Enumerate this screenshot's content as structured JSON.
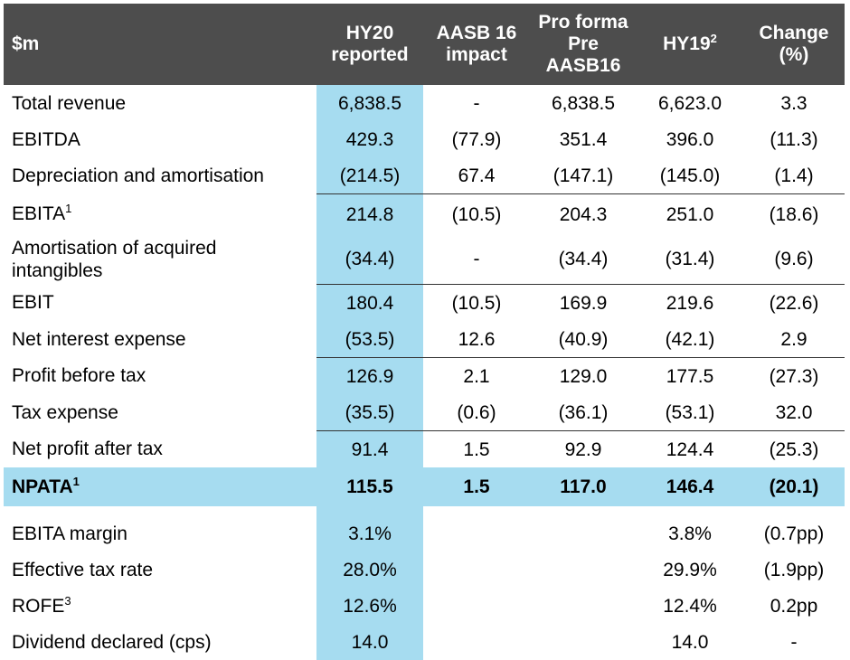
{
  "header": {
    "label": "$m",
    "columns": [
      {
        "lines": [
          "HY20",
          "reported"
        ]
      },
      {
        "lines": [
          "AASB 16",
          "impact"
        ]
      },
      {
        "lines": [
          "Pro forma",
          "Pre",
          "AASB16"
        ]
      },
      {
        "lines": [
          "HY19"
        ],
        "sup": "2"
      },
      {
        "lines": [
          "Change",
          "(%)"
        ]
      }
    ]
  },
  "rows": [
    {
      "label": "Total revenue",
      "values": [
        "6,838.5",
        "-",
        "6,838.5",
        "6,623.0",
        "3.3"
      ]
    },
    {
      "label": "EBITDA",
      "values": [
        "429.3",
        "(77.9)",
        "351.4",
        "396.0",
        "(11.3)"
      ]
    },
    {
      "label": "Depreciation and amortisation",
      "values": [
        "(214.5)",
        "67.4",
        "(147.1)",
        "(145.0)",
        "(1.4)"
      ]
    },
    {
      "label": "EBITA",
      "sup": "1",
      "values": [
        "214.8",
        "(10.5)",
        "204.3",
        "251.0",
        "(18.6)"
      ]
    },
    {
      "label_lines": [
        "Amortisation of acquired",
        "intangibles"
      ],
      "values": [
        "(34.4)",
        "-",
        "(34.4)",
        "(31.4)",
        "(9.6)"
      ]
    },
    {
      "label": "EBIT",
      "values": [
        "180.4",
        "(10.5)",
        "169.9",
        "219.6",
        "(22.6)"
      ]
    },
    {
      "label": "Net interest expense",
      "values": [
        "(53.5)",
        "12.6",
        "(40.9)",
        "(42.1)",
        "2.9"
      ]
    },
    {
      "label": "Profit before tax",
      "values": [
        "126.9",
        "2.1",
        "129.0",
        "177.5",
        "(27.3)"
      ]
    },
    {
      "label": "Tax expense",
      "values": [
        "(35.5)",
        "(0.6)",
        "(36.1)",
        "(53.1)",
        "32.0"
      ]
    },
    {
      "label": "Net profit after tax",
      "values": [
        "91.4",
        "1.5",
        "92.9",
        "124.4",
        "(25.3)"
      ]
    },
    {
      "label": "NPATA",
      "sup": "1",
      "values": [
        "115.5",
        "1.5",
        "117.0",
        "146.4",
        "(20.1)"
      ]
    },
    {
      "label": "EBITA margin",
      "values": [
        "3.1%",
        "",
        "",
        "3.8%",
        "(0.7pp)"
      ]
    },
    {
      "label": "Effective tax rate",
      "values": [
        "28.0%",
        "",
        "",
        "29.9%",
        "(1.9pp)"
      ]
    },
    {
      "label": "ROFE",
      "sup": "3",
      "values": [
        "12.6%",
        "",
        "",
        "12.4%",
        "0.2pp"
      ]
    },
    {
      "label": "Dividend declared (cps)",
      "values": [
        "14.0",
        "",
        "",
        "14.0",
        "-"
      ]
    }
  ],
  "colors": {
    "header_bg": "#4d4d4d",
    "highlight": "#a6dcf0"
  }
}
